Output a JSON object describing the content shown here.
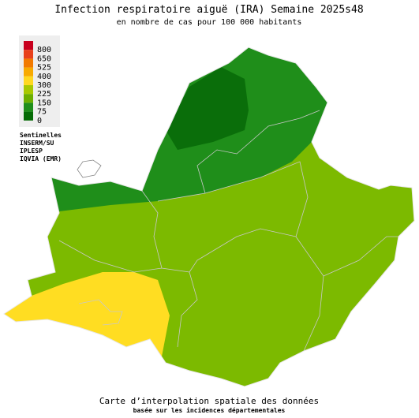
{
  "header": {
    "title": "Infection respiratoire aiguë (IRA) Semaine 2025s48",
    "subtitle": "en nombre de cas pour 100 000 habitants"
  },
  "legend": {
    "items": [
      {
        "label": "800",
        "color": "#c8001e"
      },
      {
        "label": "650",
        "color": "#e8401a"
      },
      {
        "label": "525",
        "color": "#f27a00"
      },
      {
        "label": "400",
        "color": "#f8aa00"
      },
      {
        "label": "300",
        "color": "#ffd820"
      },
      {
        "label": "225",
        "color": "#a8c800"
      },
      {
        "label": "150",
        "color": "#6cae00"
      },
      {
        "label": "75",
        "color": "#1f8e1a"
      },
      {
        "label": "0",
        "color": "#056b05"
      }
    ]
  },
  "sources": [
    "Sentinelles",
    "INSERM/SU",
    "IPLESP",
    "IQVIA (EMR)"
  ],
  "footer": {
    "line1": "Carte d’interpolation spatiale des données",
    "line2": "basée sur les incidences départementales"
  }
}
